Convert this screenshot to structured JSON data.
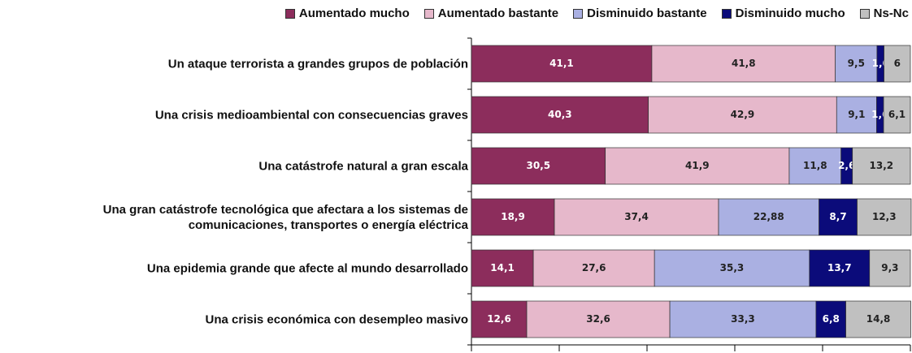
{
  "chart_data": {
    "type": "stacked_barh",
    "categories": [
      "Un ataque terrorista a grandes grupos de población",
      "Una crisis medioambiental con consecuencias graves",
      "Una catástrofe natural a gran escala",
      "Una gran catástrofe tecnológica que afectara a los sistemas de comunicaciones, transportes o energía eléctrica",
      "Una epidemia grande que afecte al mundo desarrollado",
      "Una crisis económica con desempleo masivo"
    ],
    "series": [
      {
        "name": "Aumentado mucho",
        "color": "#8c2d5c",
        "label_color": "#ffffff",
        "values": [
          41.1,
          40.3,
          30.5,
          18.9,
          14.1,
          12.6
        ],
        "value_labels": [
          "41,1",
          "40,3",
          "30,5",
          "18,9",
          "14,1",
          "12,6"
        ]
      },
      {
        "name": "Aumentado bastante",
        "color": "#e6b8cb",
        "label_color": "#222222",
        "values": [
          41.8,
          42.9,
          41.9,
          37.4,
          27.6,
          32.6
        ],
        "value_labels": [
          "41,8",
          "42,9",
          "41,9",
          "37,4",
          "27,6",
          "32,6"
        ]
      },
      {
        "name": "Disminuido bastante",
        "color": "#aab0e2",
        "label_color": "#222222",
        "values": [
          9.5,
          9.1,
          11.8,
          22.88,
          35.3,
          33.3
        ],
        "value_labels": [
          "9,5",
          "9,1",
          "11,8",
          "22,88",
          "35,3",
          "33,3"
        ]
      },
      {
        "name": "Disminuido mucho",
        "color": "#0b0b7a",
        "label_color": "#ffffff",
        "values": [
          1.6,
          1.6,
          2.6,
          8.7,
          13.7,
          6.8
        ],
        "value_labels": [
          "1,6",
          "1,6",
          "2,6",
          "8,7",
          "13,7",
          "6,8"
        ]
      },
      {
        "name": "Ns-Nc",
        "color": "#c0c0c0",
        "label_color": "#222222",
        "values": [
          6,
          6.1,
          13.2,
          12.3,
          9.3,
          14.8
        ],
        "value_labels": [
          "6",
          "6,1",
          "13,2",
          "12,3",
          "9,3",
          "14,8"
        ]
      }
    ],
    "xlim": [
      0,
      100
    ],
    "xticks": [
      0,
      20,
      40,
      60,
      80,
      100
    ]
  }
}
